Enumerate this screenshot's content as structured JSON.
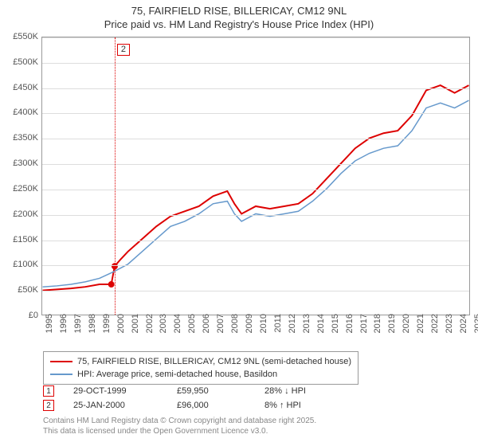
{
  "title": {
    "main": "75, FAIRFIELD RISE, BILLERICAY, CM12 9NL",
    "sub": "Price paid vs. HM Land Registry's House Price Index (HPI)"
  },
  "chart": {
    "type": "line",
    "background_color": "#ffffff",
    "grid_color": "#dddddd",
    "border_color": "#999999",
    "y_axis": {
      "min": 0,
      "max": 550,
      "step": 50,
      "labels": [
        "£0",
        "£50K",
        "£100K",
        "£150K",
        "£200K",
        "£250K",
        "£300K",
        "£350K",
        "£400K",
        "£450K",
        "£500K",
        "£550K"
      ],
      "fontsize": 11,
      "color": "#555555"
    },
    "x_axis": {
      "min": 1995,
      "max": 2025,
      "step": 1,
      "labels": [
        "1995",
        "1996",
        "1997",
        "1998",
        "1999",
        "2000",
        "2001",
        "2002",
        "2003",
        "2004",
        "2005",
        "2006",
        "2007",
        "2008",
        "2009",
        "2010",
        "2011",
        "2012",
        "2013",
        "2014",
        "2015",
        "2016",
        "2017",
        "2018",
        "2019",
        "2020",
        "2021",
        "2022",
        "2023",
        "2024",
        "2025"
      ],
      "fontsize": 11,
      "color": "#555555"
    },
    "series": [
      {
        "name": "price_paid",
        "color": "#dd0000",
        "width": 2,
        "points": [
          [
            1995,
            48
          ],
          [
            1996,
            50
          ],
          [
            1997,
            52
          ],
          [
            1998,
            55
          ],
          [
            1999,
            60
          ],
          [
            1999.83,
            60
          ],
          [
            2000.07,
            96
          ],
          [
            2000.5,
            110
          ],
          [
            2001,
            125
          ],
          [
            2002,
            150
          ],
          [
            2003,
            175
          ],
          [
            2004,
            195
          ],
          [
            2005,
            205
          ],
          [
            2006,
            215
          ],
          [
            2007,
            235
          ],
          [
            2008,
            245
          ],
          [
            2008.5,
            220
          ],
          [
            2009,
            200
          ],
          [
            2010,
            215
          ],
          [
            2011,
            210
          ],
          [
            2012,
            215
          ],
          [
            2013,
            220
          ],
          [
            2014,
            240
          ],
          [
            2015,
            270
          ],
          [
            2016,
            300
          ],
          [
            2017,
            330
          ],
          [
            2018,
            350
          ],
          [
            2019,
            360
          ],
          [
            2020,
            365
          ],
          [
            2021,
            395
          ],
          [
            2022,
            445
          ],
          [
            2023,
            455
          ],
          [
            2024,
            440
          ],
          [
            2025,
            455
          ]
        ]
      },
      {
        "name": "hpi",
        "color": "#6699cc",
        "width": 1.5,
        "points": [
          [
            1995,
            55
          ],
          [
            1996,
            57
          ],
          [
            1997,
            60
          ],
          [
            1998,
            65
          ],
          [
            1999,
            72
          ],
          [
            2000,
            85
          ],
          [
            2001,
            100
          ],
          [
            2002,
            125
          ],
          [
            2003,
            150
          ],
          [
            2004,
            175
          ],
          [
            2005,
            185
          ],
          [
            2006,
            200
          ],
          [
            2007,
            220
          ],
          [
            2008,
            225
          ],
          [
            2008.5,
            200
          ],
          [
            2009,
            185
          ],
          [
            2010,
            200
          ],
          [
            2011,
            195
          ],
          [
            2012,
            200
          ],
          [
            2013,
            205
          ],
          [
            2014,
            225
          ],
          [
            2015,
            250
          ],
          [
            2016,
            280
          ],
          [
            2017,
            305
          ],
          [
            2018,
            320
          ],
          [
            2019,
            330
          ],
          [
            2020,
            335
          ],
          [
            2021,
            365
          ],
          [
            2022,
            410
          ],
          [
            2023,
            420
          ],
          [
            2024,
            410
          ],
          [
            2025,
            425
          ]
        ]
      }
    ],
    "sale_markers": [
      {
        "idx": "1",
        "x": 1999.83,
        "y": 60
      },
      {
        "idx": "2",
        "x": 2000.07,
        "y": 96,
        "show_flag": true
      }
    ]
  },
  "legend": {
    "items": [
      {
        "color": "#dd0000",
        "width": 2,
        "label": "75, FAIRFIELD RISE, BILLERICAY, CM12 9NL (semi-detached house)"
      },
      {
        "color": "#6699cc",
        "width": 1.5,
        "label": "HPI: Average price, semi-detached house, Basildon"
      }
    ]
  },
  "transactions": [
    {
      "idx": "1",
      "date": "29-OCT-1999",
      "price": "£59,950",
      "pct": "28% ↓ HPI"
    },
    {
      "idx": "2",
      "date": "25-JAN-2000",
      "price": "£96,000",
      "pct": "8% ↑ HPI"
    }
  ],
  "footer": {
    "line1": "Contains HM Land Registry data © Crown copyright and database right 2025.",
    "line2": "This data is licensed under the Open Government Licence v3.0."
  }
}
